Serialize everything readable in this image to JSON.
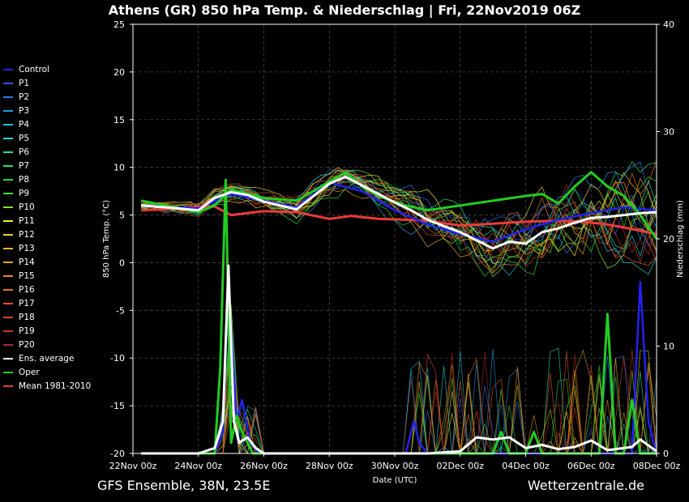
{
  "title": "Athens  (GR)  850 hPa Temp. & Niederschlag | Fri, 22Nov2019 06Z",
  "footer": {
    "model": "GFS Ensemble, 38N, 23.5E",
    "source": "Wetterzentrale.de"
  },
  "chart_data": {
    "type": "line",
    "xlabel": "Date (UTC)",
    "ylabel_left": "850 hPa Temp. (°C)",
    "ylabel_right": "Niederschlag (mm)",
    "ylim_left": [
      -20,
      25
    ],
    "ylim_right": [
      0,
      40
    ],
    "yticks_left": [
      -20,
      -15,
      -10,
      -5,
      0,
      5,
      10,
      15,
      20,
      25
    ],
    "yticks_right": [
      0,
      10,
      20,
      30,
      40
    ],
    "x_tick_labels": [
      "22Nov 00z",
      "24Nov 00z",
      "26Nov 00z",
      "28Nov 00z",
      "30Nov 00z",
      "02Dec 00z",
      "04Dec 00z",
      "06Dec 00z",
      "08Dec 00z"
    ],
    "x_range_hours": [
      6,
      384
    ],
    "grid": true,
    "legend_entries": [
      {
        "name": "Control",
        "color": "#2222ee"
      },
      {
        "name": "P1",
        "color": "#2b55ee"
      },
      {
        "name": "P2",
        "color": "#2a7ae8"
      },
      {
        "name": "P3",
        "color": "#1e9ce0"
      },
      {
        "name": "P4",
        "color": "#22c0e0"
      },
      {
        "name": "P5",
        "color": "#22dcd0"
      },
      {
        "name": "P6",
        "color": "#22e0a0"
      },
      {
        "name": "P7",
        "color": "#22e070"
      },
      {
        "name": "P8",
        "color": "#22d840"
      },
      {
        "name": "P9",
        "color": "#33e022"
      },
      {
        "name": "P10",
        "color": "#88e022"
      },
      {
        "name": "P11",
        "color": "#eeee22"
      },
      {
        "name": "P12",
        "color": "#ead030"
      },
      {
        "name": "P13",
        "color": "#e8b82a"
      },
      {
        "name": "P14",
        "color": "#eaa022"
      },
      {
        "name": "P15",
        "color": "#ec8f1e"
      },
      {
        "name": "P16",
        "color": "#e87522"
      },
      {
        "name": "P17",
        "color": "#e05a22"
      },
      {
        "name": "P18",
        "color": "#d84a2a"
      },
      {
        "name": "P19",
        "color": "#c83a22"
      },
      {
        "name": "P20",
        "color": "#b02a1e"
      },
      {
        "name": "Ens. average",
        "color": "#ffffff"
      },
      {
        "name": "Oper",
        "color": "#22cc22"
      },
      {
        "name": "Mean 1981-2010",
        "color": "#ee3a3a"
      }
    ],
    "series": [
      {
        "name": "Ens. average",
        "kind": "temp",
        "x": [
          6,
          24,
          48,
          60,
          72,
          84,
          96,
          120,
          144,
          156,
          168,
          180,
          192,
          204,
          216,
          240,
          264,
          276,
          288,
          300,
          312,
          324,
          336,
          348,
          360,
          372,
          384
        ],
        "values": [
          6.0,
          5.8,
          5.5,
          6.8,
          7.4,
          7.1,
          6.4,
          5.6,
          8.3,
          9.0,
          8.1,
          7.2,
          6.3,
          5.5,
          4.5,
          3.2,
          1.5,
          2.2,
          2.0,
          3.2,
          3.6,
          4.2,
          4.7,
          4.8,
          5.0,
          5.2,
          5.3
        ]
      },
      {
        "name": "Mean 1981-2010",
        "kind": "temp",
        "x": [
          6,
          24,
          48,
          60,
          72,
          96,
          120,
          144,
          160,
          180,
          200,
          216,
          240,
          264,
          288,
          312,
          330,
          348,
          360,
          384
        ],
        "values": [
          5.5,
          5.6,
          5.9,
          5.9,
          5.0,
          5.4,
          5.3,
          4.6,
          4.9,
          4.6,
          4.5,
          4.4,
          3.9,
          4.1,
          4.3,
          4.4,
          4.3,
          4.0,
          3.7,
          3.0
        ]
      },
      {
        "name": "Oper",
        "kind": "temp",
        "x": [
          6,
          24,
          48,
          60,
          72,
          96,
          120,
          144,
          156,
          168,
          180,
          200,
          216,
          240,
          264,
          288,
          300,
          312,
          324,
          336,
          348,
          360,
          372,
          384
        ],
        "values": [
          6.5,
          6.0,
          5.3,
          6.0,
          7.7,
          6.8,
          6.5,
          8.5,
          9.5,
          8.0,
          7.0,
          6.0,
          5.5,
          6.0,
          6.5,
          7.0,
          7.2,
          6.2,
          8.0,
          9.5,
          8.0,
          7.0,
          5.0,
          2.5
        ]
      },
      {
        "name": "Control",
        "kind": "temp",
        "x": [
          6,
          24,
          48,
          72,
          96,
          120,
          144,
          168,
          192,
          216,
          240,
          264,
          288,
          312,
          336,
          360,
          384
        ],
        "values": [
          6.0,
          5.9,
          5.7,
          7.2,
          6.5,
          5.8,
          8.4,
          7.5,
          5.5,
          4.0,
          3.0,
          2.2,
          3.5,
          4.5,
          5.2,
          5.8,
          5.5
        ]
      },
      {
        "name": "Oper",
        "kind": "precip",
        "x": [
          6,
          60,
          64,
          68,
          72,
          76,
          80,
          84,
          88,
          96,
          120,
          144,
          168,
          192,
          216,
          240,
          264,
          270,
          276,
          288,
          294,
          300,
          312,
          336,
          342,
          348,
          354,
          360,
          366,
          372,
          378,
          384
        ],
        "values": [
          0,
          0,
          8,
          25.5,
          1,
          3.5,
          2,
          1,
          0,
          0,
          0,
          0,
          0,
          0,
          0,
          0,
          0,
          2,
          0,
          0,
          2,
          0,
          0,
          0,
          0,
          13,
          0,
          0,
          5,
          0,
          0,
          0
        ]
      },
      {
        "name": "Control",
        "kind": "precip",
        "x": [
          6,
          60,
          66,
          70,
          76,
          80,
          86,
          92,
          100,
          200,
          206,
          210,
          216,
          230,
          250,
          270,
          290,
          330,
          350,
          360,
          366,
          372,
          378,
          384
        ],
        "values": [
          0,
          0,
          2,
          16,
          3,
          5,
          1,
          0,
          0,
          0,
          3,
          1,
          0,
          0,
          0,
          0,
          0,
          0,
          0,
          0,
          0,
          16,
          3,
          0
        ]
      },
      {
        "name": "Ens. average",
        "kind": "precip",
        "x": [
          6,
          24,
          48,
          60,
          66,
          70,
          74,
          78,
          84,
          90,
          96,
          120,
          144,
          168,
          192,
          216,
          240,
          252,
          264,
          276,
          288,
          300,
          312,
          324,
          336,
          348,
          360,
          366,
          372,
          384
        ],
        "values": [
          0,
          0,
          0,
          0.5,
          3,
          17.5,
          3,
          1,
          1.5,
          0.5,
          0,
          0,
          0,
          0,
          0,
          0,
          0.2,
          1.5,
          1.3,
          1.5,
          0.5,
          0.8,
          0.4,
          0.6,
          1.2,
          0.3,
          0.5,
          0.6,
          1.3,
          0.2
        ]
      }
    ]
  }
}
